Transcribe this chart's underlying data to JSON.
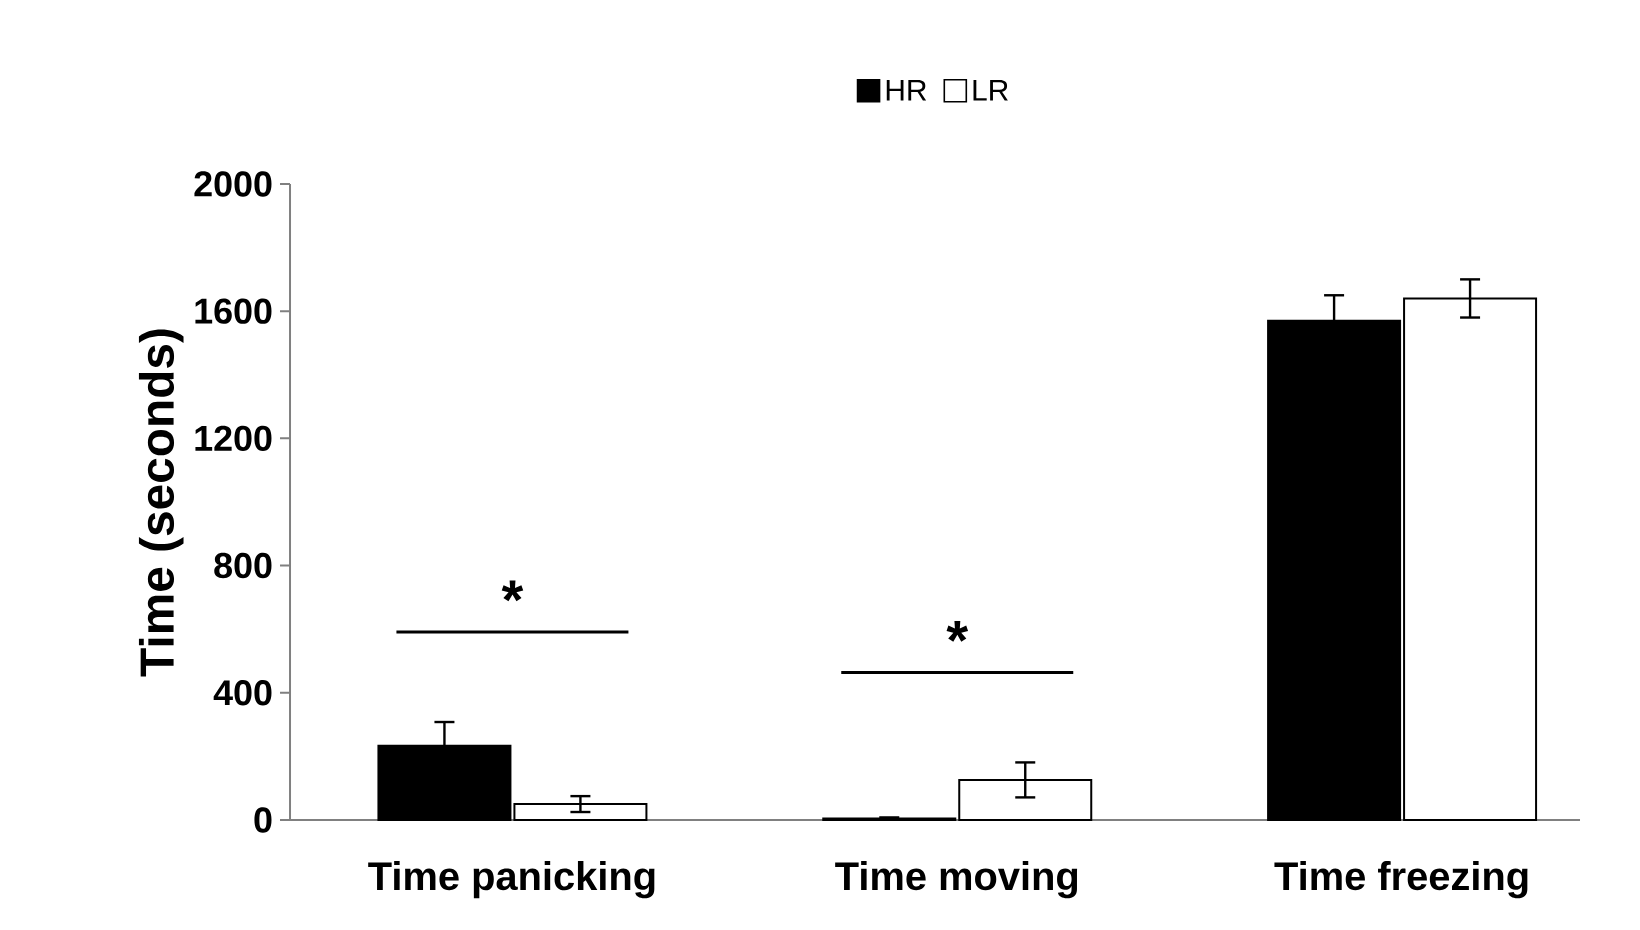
{
  "chart_data": {
    "type": "bar",
    "ylabel": "Time (seconds)",
    "categories": [
      "Time panicking",
      "Time moving",
      "Time freezing"
    ],
    "series": [
      {
        "name": "HR",
        "color": "#000000",
        "values": [
          233,
          5,
          1570
        ],
        "errors": [
          75,
          3,
          80
        ]
      },
      {
        "name": "LR",
        "color": "#ffffff",
        "values": [
          50,
          126,
          1640
        ],
        "errors": [
          25,
          55,
          60
        ]
      }
    ],
    "ylim": [
      0,
      2000
    ],
    "yticks": [
      0,
      400,
      800,
      1200,
      1600,
      2000
    ],
    "legend": "top",
    "grid": false,
    "annotations": [
      "*",
      "*"
    ]
  }
}
